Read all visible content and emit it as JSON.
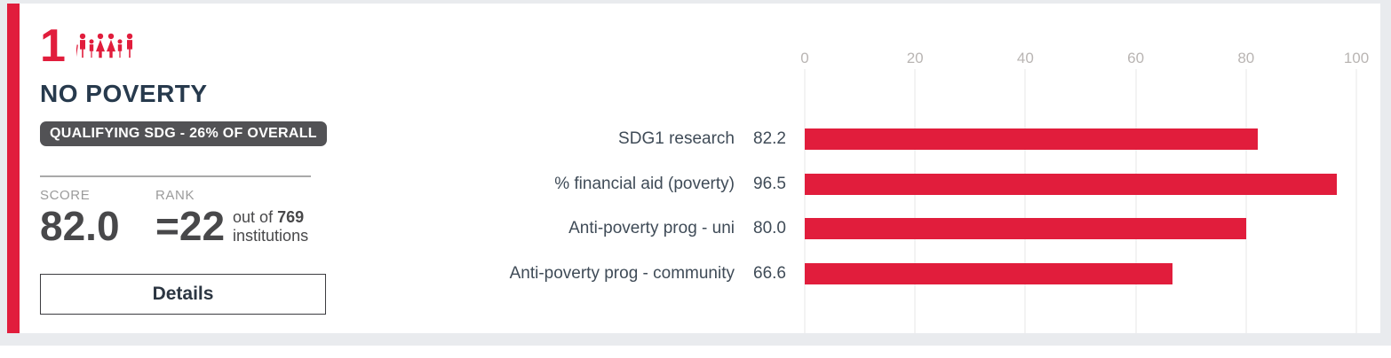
{
  "colors": {
    "accent": "#e11d3c",
    "page_background": "#e9ebee",
    "badge_background": "#525255",
    "title_text": "#273a4d",
    "gridline": "#e7e7e7"
  },
  "card": {
    "goal_number": "1",
    "title": "NO POVERTY",
    "badge": "QUALIFYING SDG - 26% OF OVERALL",
    "score_label": "SCORE",
    "score_value": "82.0",
    "rank_label": "RANK",
    "rank_value": "=22",
    "rank_out_of_prefix": "out of",
    "rank_total": "769",
    "rank_suffix": "institutions",
    "details_label": "Details"
  },
  "icons": {
    "family_icon": "family-figures"
  },
  "chart_data": {
    "type": "bar",
    "orientation": "horizontal",
    "title": "",
    "xlabel": "",
    "ylabel": "",
    "categories": [
      "SDG1 research",
      "% financial aid (poverty)",
      "Anti-poverty prog - uni",
      "Anti-poverty prog - community"
    ],
    "values": [
      82.2,
      96.5,
      80.0,
      66.6
    ],
    "value_labels": [
      "82.2",
      "96.5",
      "80.0",
      "66.6"
    ],
    "xlim": [
      0,
      100
    ],
    "x_ticks": [
      0,
      20,
      40,
      60,
      80,
      100
    ],
    "bar_color": "#e11d3c",
    "grid": true,
    "legend": "none"
  }
}
